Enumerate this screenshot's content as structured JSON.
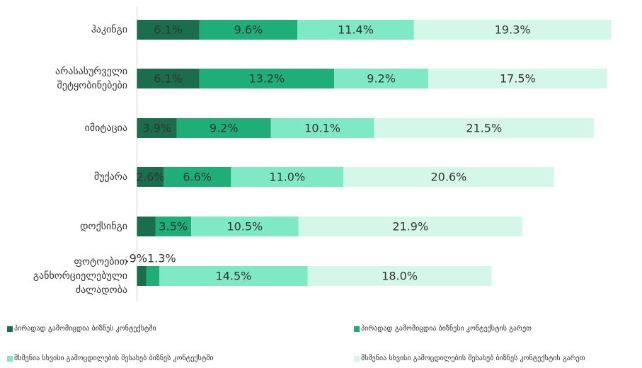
{
  "chart_data": {
    "type": "stacked-bar-horizontal",
    "categories": [
      "ჰაკინგი",
      "არასასურველი შეტყობინებები",
      "იმიტაცია",
      "მუქარა",
      "დოქსინგი",
      "ფოტოებით განხორციელებული ძალადობა"
    ],
    "series": [
      {
        "name": "პირადად გამომიცდია ბიზნეს კონტექსტში",
        "color": "#1a6e4e",
        "values": [
          6.1,
          6.1,
          3.9,
          2.6,
          1.8,
          0.9
        ],
        "value_labels": [
          "6.1%",
          "6.1%",
          "3.9%",
          "2.6%",
          null,
          ".9%"
        ]
      },
      {
        "name": "პირადად გამომიცდია ბიზნესი კონტექსტის გარეთ",
        "color": "#1fae78",
        "values": [
          9.6,
          13.2,
          9.2,
          6.6,
          3.5,
          1.3
        ],
        "value_labels": [
          "9.6%",
          "13.2%",
          "9.2%",
          "6.6%",
          "3.5%",
          "1.3%"
        ]
      },
      {
        "name": "მსმენია სხვისი გამოცდილების შესახებ ბიზნეს კონტექსტში",
        "color": "#7fe8c4",
        "values": [
          11.4,
          9.2,
          10.1,
          11.0,
          10.5,
          14.5
        ],
        "value_labels": [
          "11.4%",
          "9.2%",
          "10.1%",
          "11.0%",
          "10.5%",
          "14.5%"
        ]
      },
      {
        "name": "მსმენია სხვისი გამოცდილების შესახებ ბიზნეს კონტექსტის გარეთ",
        "color": "#d4f7ea",
        "values": [
          19.3,
          17.5,
          21.5,
          20.6,
          21.9,
          18.0
        ],
        "value_labels": [
          "19.3%",
          "17.5%",
          "21.5%",
          "20.6%",
          "21.9%",
          "18.0%"
        ]
      }
    ]
  }
}
